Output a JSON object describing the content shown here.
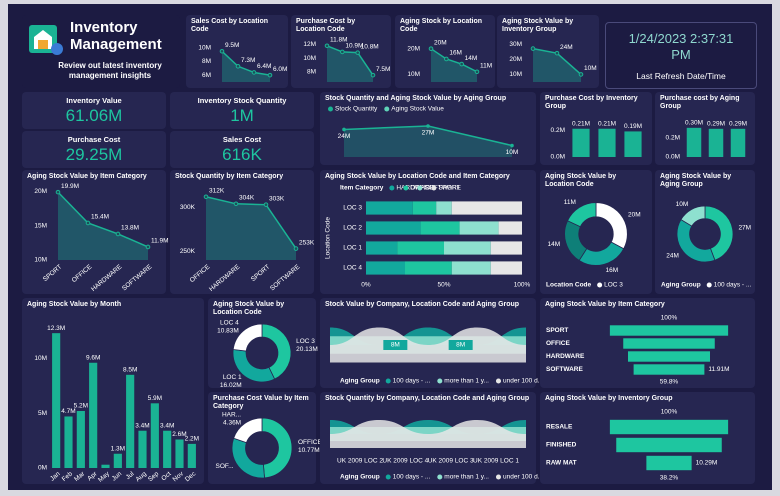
{
  "header": {
    "title": "Inventory Management",
    "subtitle": "Review out latest inventory management insights"
  },
  "refresh": {
    "value": "1/24/2023 2:37:31 PM",
    "label": "Last Refresh Date/Time"
  },
  "kpis": [
    {
      "label": "Inventory Value",
      "value": "61.06M"
    },
    {
      "label": "Inventory Stock Quantity",
      "value": "1M"
    },
    {
      "label": "Purchase Cost",
      "value": "29.25M"
    },
    {
      "label": "Sales Cost",
      "value": "616K"
    }
  ],
  "chart_data": [
    {
      "type": "line",
      "title": "Sales Cost by Location Code",
      "values": [
        9500000,
        7300000,
        6400000,
        6000000
      ],
      "value_labels": [
        "9.5M",
        "7.3M",
        "6.4M",
        "6.0M"
      ],
      "ylim": [
        5000000,
        11000000
      ],
      "yticks": [
        {
          "value": 6000000,
          "label": "6M"
        },
        {
          "value": 8000000,
          "label": "8M"
        },
        {
          "value": 10000000,
          "label": "10M"
        }
      ],
      "color": "#1ab394"
    },
    {
      "type": "line",
      "title": "Purchase Cost by Location Code",
      "values": [
        11800000,
        10900000,
        10800000,
        7500000
      ],
      "value_labels": [
        "11.8M",
        "10.9M",
        "10.8M",
        "7.5M"
      ],
      "ylim": [
        6500000,
        12500000
      ],
      "yticks": [
        {
          "value": 8000000,
          "label": "8M"
        },
        {
          "value": 10000000,
          "label": "10M"
        },
        {
          "value": 12000000,
          "label": "12M"
        }
      ],
      "color": "#1ab394"
    },
    {
      "type": "line",
      "title": "Aging Stock by Location Code",
      "values": [
        20000000,
        16000000,
        14000000,
        11000000
      ],
      "value_labels": [
        "20M",
        "16M",
        "14M",
        "11M"
      ],
      "ylim": [
        7000000,
        23000000
      ],
      "yticks": [
        {
          "value": 10000000,
          "label": "10M"
        },
        {
          "value": 20000000,
          "label": "20M"
        }
      ],
      "color": "#1ab394"
    },
    {
      "type": "line",
      "title": "Aging Stock Value by Inventory Group",
      "values": [
        27000000,
        24000000,
        10000000
      ],
      "value_labels": [
        null,
        "24M",
        "10M"
      ],
      "ylim": [
        5000000,
        32000000
      ],
      "yticks": [
        {
          "value": 10000000,
          "label": "10M"
        },
        {
          "value": 20000000,
          "label": "20M"
        },
        {
          "value": 30000000,
          "label": "30M"
        }
      ],
      "color": "#1ab394"
    },
    {
      "type": "combo",
      "title": "Stock Quantity and Aging Stock Value by Aging Group",
      "legend": [
        "Stock Quantity",
        "Aging Stock Value"
      ],
      "colors": [
        "#1ab394",
        "#5fd3b8"
      ],
      "values": [
        24000000,
        27000000,
        10000000
      ],
      "value_labels": [
        "24M",
        "27M",
        "10M"
      ],
      "color": "#1ab394"
    },
    {
      "type": "bar",
      "title": "Purchase Cost by Inventory Group",
      "values": [
        210000,
        210000,
        190000
      ],
      "value_labels": [
        "0.21M",
        "0.21M",
        "0.19M"
      ],
      "ylim": [
        0,
        260000
      ],
      "yticks": [
        {
          "value": 0,
          "label": "0.0M"
        },
        {
          "value": 200000,
          "label": "0.2M"
        }
      ],
      "color": "#1ab394"
    },
    {
      "type": "bar",
      "title": "Purchase cost by Aging Group",
      "values": [
        300000,
        290000,
        290000
      ],
      "value_labels": [
        "0.30M",
        "0.29M",
        "0.29M"
      ],
      "ylim": [
        0,
        360000
      ],
      "yticks": [
        {
          "value": 0,
          "label": "0.0M"
        },
        {
          "value": 200000,
          "label": "0.2M"
        }
      ],
      "color": "#1ab394"
    },
    {
      "type": "line",
      "title": "Aging Stock Value by Item Category",
      "categories": [
        "SPORT",
        "OFFICE",
        "HARDWARE",
        "SOFTWARE"
      ],
      "values": [
        19900000,
        15400000,
        13800000,
        11900000
      ],
      "value_labels": [
        "19.9M",
        "15.4M",
        "13.8M",
        "11.9M"
      ],
      "ylim": [
        10000000,
        20500000
      ],
      "yticks": [
        {
          "value": 10000000,
          "label": "10M"
        },
        {
          "value": 15000000,
          "label": "15M"
        },
        {
          "value": 20000000,
          "label": "20M"
        }
      ],
      "color": "#1ab394"
    },
    {
      "type": "line",
      "title": "Stock Quantity by Item Category",
      "categories": [
        "OFFICE",
        "HARDWARE",
        "SPORT",
        "SOFTWARE"
      ],
      "values": [
        312000,
        304000,
        303000,
        253000
      ],
      "value_labels": [
        "312K",
        "304K",
        "303K",
        "253K"
      ],
      "ylim": [
        240000,
        322000
      ],
      "yticks": [
        {
          "value": 250000,
          "label": "250K"
        },
        {
          "value": 300000,
          "label": "300K"
        }
      ],
      "color": "#1ab394"
    },
    {
      "type": "hbar100",
      "title": "Aging Stock Value by Location Code and Item Category",
      "legend_title": "Item Category",
      "y_label": "Location Code",
      "categories": [
        "LOC 3",
        "LOC 2",
        "LOC 1",
        "LOC 4"
      ],
      "series": [
        {
          "name": "HARDWARE",
          "color": "#12a89d",
          "values": [
            30,
            35,
            20,
            25
          ]
        },
        {
          "name": "OFFICE",
          "color": "#1ec6a0",
          "values": [
            15,
            25,
            30,
            30
          ]
        },
        {
          "name": "SOFTWARE",
          "color": "#8ee0cf",
          "values": [
            10,
            25,
            30,
            25
          ]
        },
        {
          "name": "SPORT",
          "color": "#e6e6e6",
          "values": [
            45,
            15,
            20,
            20
          ]
        }
      ],
      "xlim": [
        0,
        100
      ],
      "xticks": [
        {
          "value": 0,
          "label": "0%"
        },
        {
          "value": 50,
          "label": "50%"
        },
        {
          "value": 100,
          "label": "100%"
        }
      ]
    },
    {
      "type": "pie",
      "title": "Aging Stock Value by Location Code",
      "values": [
        20000000,
        16000000,
        14000000,
        11000000
      ],
      "value_labels": [
        "20M",
        "16M",
        "14M",
        "11M"
      ],
      "colors": [
        "#ffffff",
        "#12a89d",
        "#0e7f78",
        "#1ec6a0"
      ],
      "legend_title": "Location Code",
      "legend": [
        "LOC 3"
      ]
    },
    {
      "type": "pie",
      "title": "Aging Stock Value by Aging Group",
      "values": [
        27000000,
        24000000,
        10000000
      ],
      "value_labels": [
        "27M",
        "24M",
        "10M"
      ],
      "colors": [
        "#1ec6a0",
        "#12a89d",
        "#8ee0cf"
      ],
      "legend_title": "Aging Group",
      "legend": [
        "100 days - ..."
      ]
    },
    {
      "type": "bar",
      "title": "Aging Stock Value by Month",
      "categories": [
        "Jan",
        "Feb",
        "Mar",
        "Apr",
        "May",
        "Jun",
        "Jul",
        "Aug",
        "Sep",
        "Oct",
        "Nov",
        "Dec"
      ],
      "values": [
        12300000,
        4700000,
        5200000,
        9600000,
        300000,
        1300000,
        8500000,
        3400000,
        5900000,
        3400000,
        2600000,
        2200000
      ],
      "value_labels": [
        "12.3M",
        "4.7M",
        "5.2M",
        "9.6M",
        null,
        "1.3M",
        "8.5M",
        "3.4M",
        "5.9M",
        "3.4M",
        "2.6M",
        "2.2M"
      ],
      "ylim": [
        0,
        13500000
      ],
      "yticks": [
        {
          "value": 0,
          "label": "0M"
        },
        {
          "value": 5000000,
          "label": "5M"
        },
        {
          "value": 10000000,
          "label": "10M"
        }
      ],
      "color": "#1ab394"
    },
    {
      "type": "pie",
      "title": "Aging Stock Value by Location Code",
      "categories": [
        "LOC 3",
        "LOC 1",
        "LOC 4"
      ],
      "values": [
        20130000,
        16020000,
        10830000
      ],
      "value_labels": [
        "20.13M",
        "16.02M",
        "10.83M"
      ],
      "colors": [
        "#1ec6a0",
        "#12a89d",
        "#ffffff"
      ]
    },
    {
      "type": "pie",
      "title": "Purchase Cost Value by Item Category",
      "categories": [
        "OFFICE",
        "SOF...",
        "HAR..."
      ],
      "values": [
        10770000,
        7000000,
        4360000
      ],
      "value_labels": [
        "10.77M",
        null,
        "4.36M"
      ],
      "colors": [
        "#1ec6a0",
        "#12a89d",
        "#ffffff"
      ]
    },
    {
      "type": "ribbon",
      "title": "Stock Value by Company, Location Code and Aging Group",
      "legend_title": "Aging Group",
      "legend": [
        "100 days - ...",
        "more than 1 y...",
        "under 100 d..."
      ],
      "colors": [
        "#12a89d",
        "#8ee0cf",
        "#e6e6e6"
      ],
      "values": [
        8000000,
        8000000
      ],
      "value_labels": [
        "8M",
        "8M"
      ]
    },
    {
      "type": "ribbon",
      "title": "Stock Quantity by Company, Location Code and Aging Group",
      "legend_title": "Aging Group",
      "legend": [
        "100 days - ...",
        "more than 1 y...",
        "under 100 d..."
      ],
      "colors": [
        "#12a89d",
        "#8ee0cf",
        "#e6e6e6"
      ],
      "categories": [
        "UK 2009 LOC 2",
        "UK 2009 LOC 4",
        "UK 2009 LOC 3",
        "UK 2009 LOC 1"
      ]
    },
    {
      "type": "funnel",
      "title": "Aging Stock Value by Item Category",
      "categories": [
        "SPORT",
        "OFFICE",
        "HARDWARE",
        "SOFTWARE"
      ],
      "values": [
        19900000,
        15400000,
        13800000,
        11910000
      ],
      "value_labels": [
        null,
        null,
        null,
        "11.91M"
      ],
      "top_label": "100%",
      "bottom_label": "59.8%",
      "color": "#1ec6a0"
    },
    {
      "type": "funnel",
      "title": "Aging Stock Value by Inventory Group",
      "categories": [
        "RESALE",
        "FINISHED",
        "RAW MAT"
      ],
      "values": [
        26900000,
        24000000,
        10290000
      ],
      "value_labels": [
        null,
        null,
        "10.29M"
      ],
      "top_label": "100%",
      "bottom_label": "38.2%",
      "color": "#1ec6a0"
    }
  ]
}
